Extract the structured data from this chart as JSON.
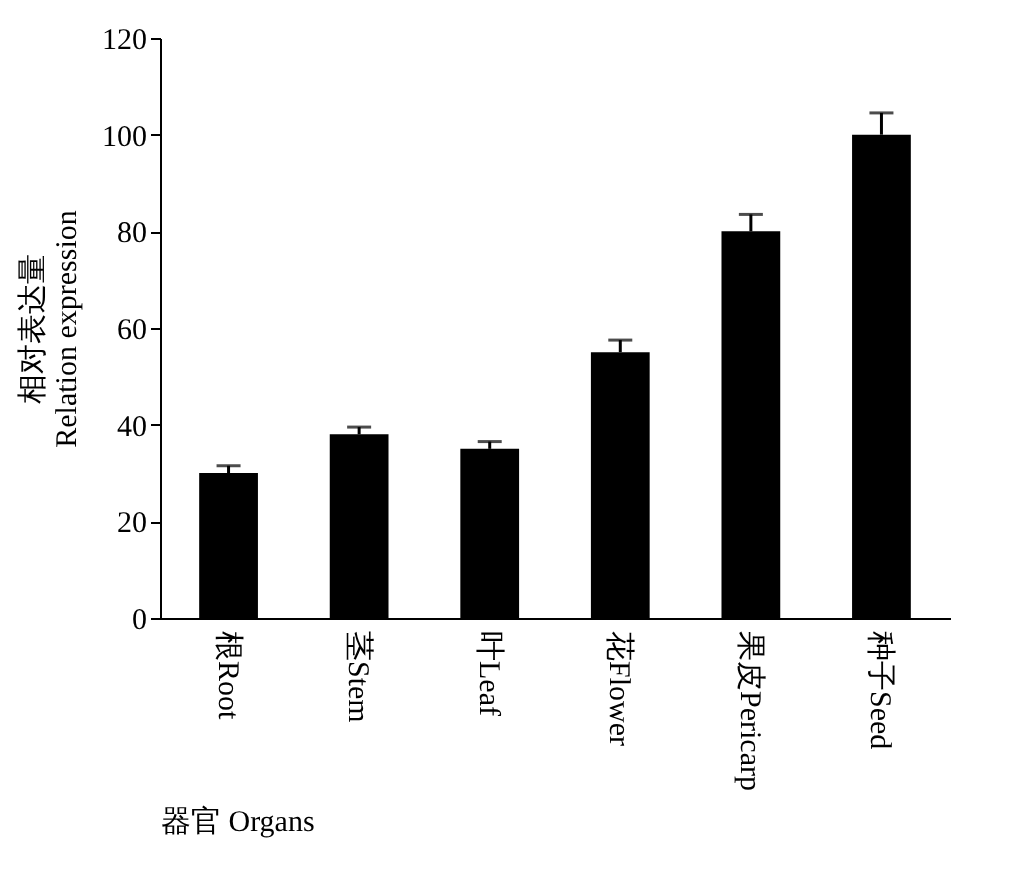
{
  "chart_data": {
    "type": "bar",
    "xlabel": "器官 Organs",
    "ylabel": "相对表达量\nRelation expression",
    "categories": [
      "根Root",
      "茎Stem",
      "叶Leaf",
      "花Flower",
      "果皮Pericarp",
      "种子Seed"
    ],
    "values": [
      30,
      38,
      35,
      55,
      80,
      100
    ],
    "errors": [
      1.5,
      1.5,
      1.5,
      2.5,
      3.5,
      4.5
    ],
    "color": "#000000",
    "ylim": [
      0,
      120
    ],
    "yticks": [
      0,
      20,
      40,
      60,
      80,
      100,
      120
    ],
    "grid": false
  }
}
